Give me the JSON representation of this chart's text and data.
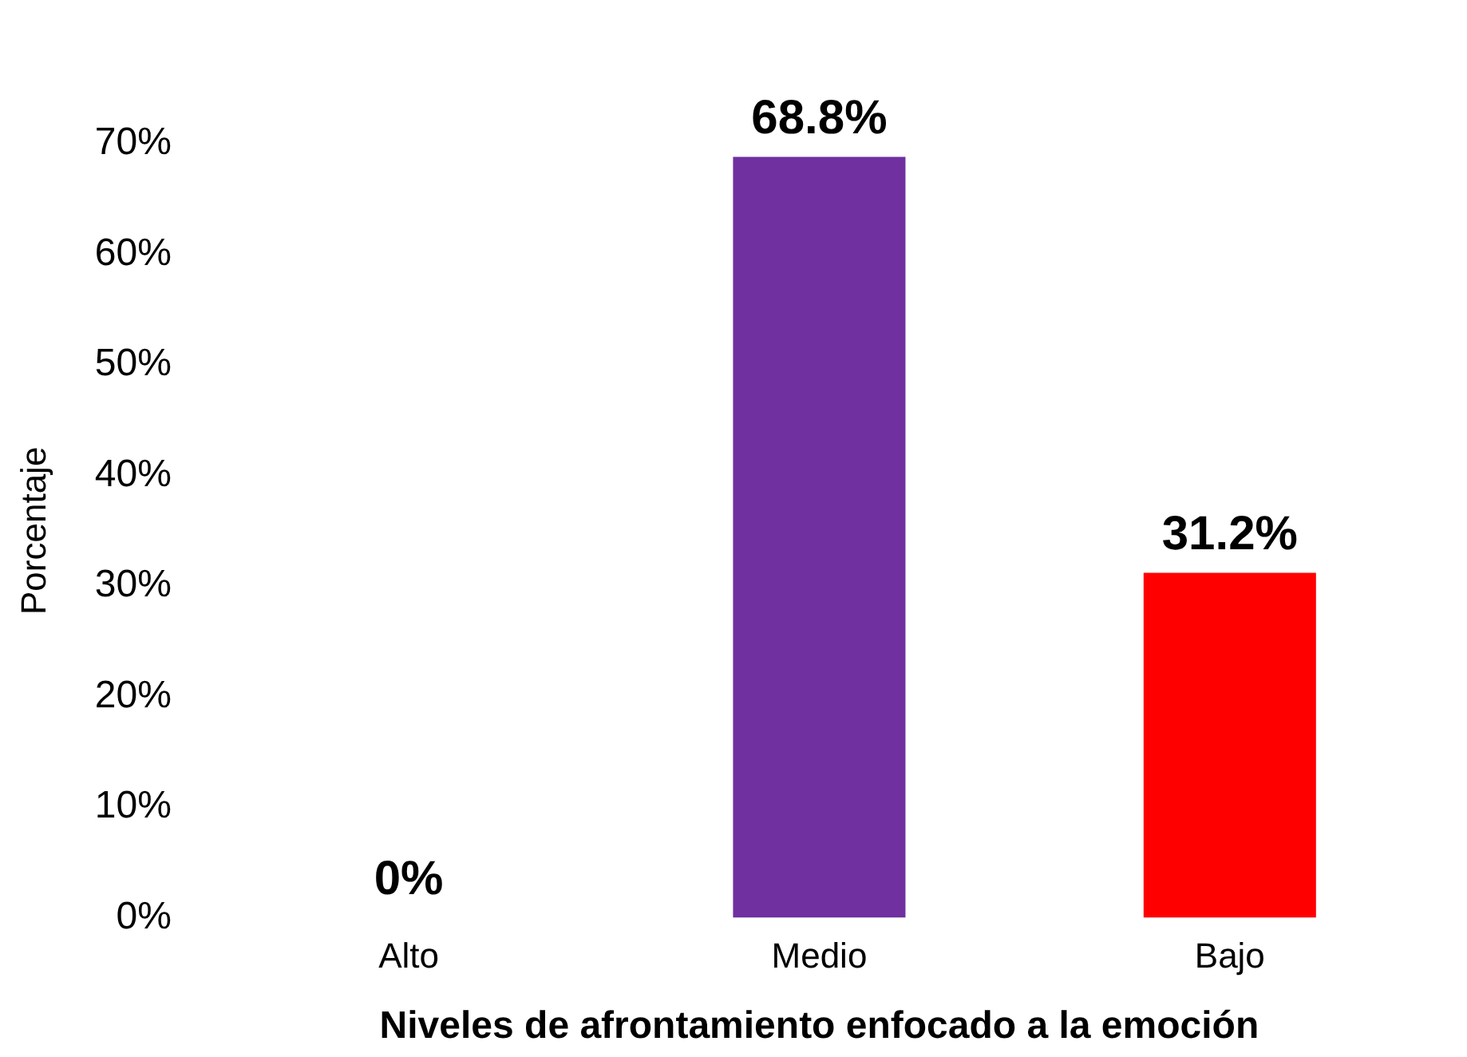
{
  "chart_data": {
    "type": "bar",
    "xlabel": "Niveles de afrontamiento enfocado a la emoción",
    "ylabel": "Porcentaje",
    "categories": [
      "Alto",
      "Medio",
      "Bajo"
    ],
    "values": [
      0,
      68.8,
      31.2
    ],
    "colors": [
      "#c3c300",
      "#7030a0",
      "#ff0000"
    ],
    "value_labels": [
      "0%",
      "68.8%",
      "31.2%"
    ],
    "ylim": [
      0,
      70
    ],
    "yticks": [
      {
        "value": 0,
        "label": "0%"
      },
      {
        "value": 10,
        "label": "10%"
      },
      {
        "value": 20,
        "label": "20%"
      },
      {
        "value": 30,
        "label": "30%"
      },
      {
        "value": 40,
        "label": "40%"
      },
      {
        "value": 50,
        "label": "50%"
      },
      {
        "value": 60,
        "label": "60%"
      },
      {
        "value": 70,
        "label": "70%"
      }
    ],
    "grid": false,
    "legend": false
  }
}
